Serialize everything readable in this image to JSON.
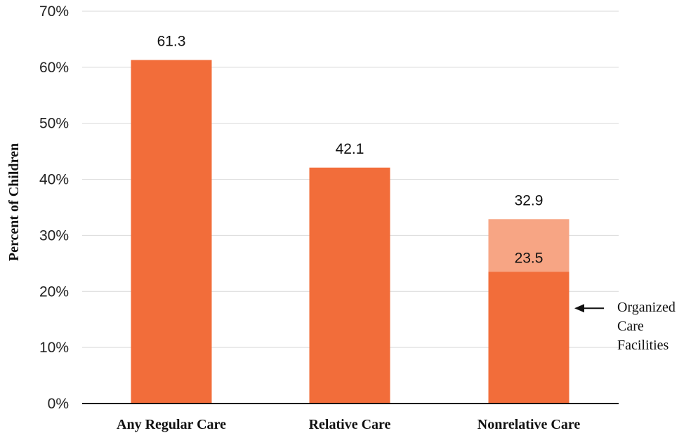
{
  "chart_data": {
    "type": "bar",
    "categories": [
      "Any Regular Care",
      "Relative Care",
      "Nonrelative Care"
    ],
    "values": [
      61.3,
      42.1,
      32.9
    ],
    "value_labels": [
      "61.3",
      "42.1",
      "32.9"
    ],
    "sub_bar": {
      "category": "Nonrelative Care",
      "value": 23.5,
      "label": "23.5"
    },
    "ylabel": "Percent of Children",
    "xlabel": "",
    "ylim": [
      0,
      70
    ],
    "yticks": [
      0,
      10,
      20,
      30,
      40,
      50,
      60,
      70
    ],
    "ytick_labels": [
      "0%",
      "10%",
      "20%",
      "30%",
      "40%",
      "50%",
      "60%",
      "70%"
    ],
    "grid": true,
    "annotation": {
      "lines": [
        "Organized",
        "Care",
        "Facilities"
      ],
      "arrow": "left"
    },
    "colors": {
      "bar": "#f26d3a",
      "bar_light": "#f7a584",
      "grid": "#d9d9d9",
      "axis": "#111111"
    }
  }
}
